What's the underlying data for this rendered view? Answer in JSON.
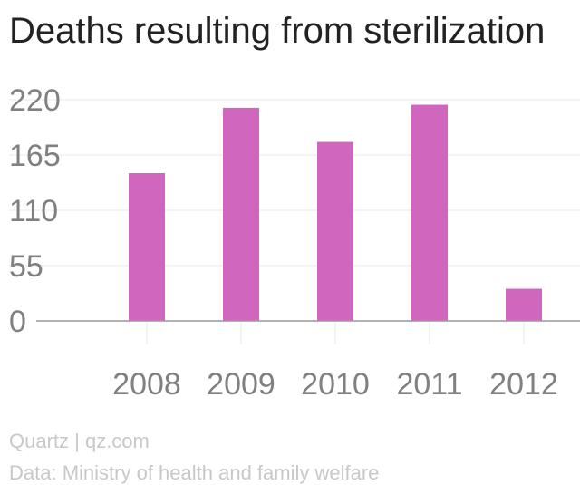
{
  "title": "Deaths resulting from sterilization",
  "footer": {
    "brand": "Quartz | qz.com",
    "source": "Data: Ministry of health and family welfare"
  },
  "colors": {
    "bar": "#d066bd",
    "grid": "#e8e8e8",
    "axis": "#999999",
    "tick_text": "#808080"
  },
  "chart_data": {
    "type": "bar",
    "title": "Deaths resulting from sterilization",
    "categories": [
      "2008",
      "2009",
      "2010",
      "2011",
      "2012"
    ],
    "values": [
      147,
      212,
      178,
      215,
      32
    ],
    "yticks": [
      "0",
      "55",
      "110",
      "165",
      "220"
    ],
    "ylim": [
      0,
      220
    ],
    "xlabel": "",
    "ylabel": "",
    "grid": true,
    "legend": "none"
  }
}
